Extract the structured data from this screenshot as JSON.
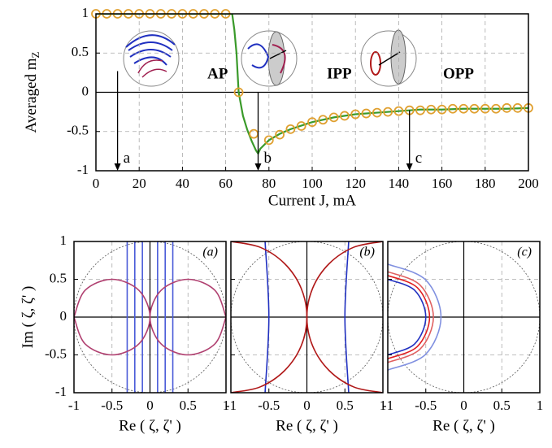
{
  "chart_data": [
    {
      "type": "line",
      "xlabel": "Current J, mA",
      "ylabel": "Averaged m",
      "ylabel_sub": "Z",
      "xlim": [
        0,
        200
      ],
      "xticks": [
        0,
        20,
        40,
        60,
        80,
        100,
        120,
        140,
        160,
        180,
        200
      ],
      "ylim": [
        -1,
        1
      ],
      "yticks": [
        -1,
        -0.5,
        0,
        0.5,
        1
      ],
      "grid": true,
      "series": [
        {
          "color": "#3a9a2a",
          "x": [
            0,
            63,
            64,
            65,
            66,
            68,
            70,
            72,
            74,
            75,
            76,
            80,
            85,
            90,
            100,
            110,
            120,
            130,
            140,
            150,
            160,
            170,
            180,
            190,
            200
          ],
          "values": [
            1,
            1,
            0.8,
            0.5,
            0,
            -0.3,
            -0.48,
            -0.62,
            -0.74,
            -0.78,
            -0.72,
            -0.61,
            -0.53,
            -0.47,
            -0.38,
            -0.32,
            -0.28,
            -0.26,
            -0.24,
            -0.22,
            -0.22,
            -0.21,
            -0.21,
            -0.21,
            -0.2
          ]
        },
        {
          "color": "#e0a030",
          "marker": "circle",
          "line": false,
          "x": [
            0,
            5,
            10,
            15,
            20,
            25,
            30,
            35,
            40,
            45,
            50,
            55,
            60,
            66,
            73,
            80,
            85,
            90,
            95,
            100,
            105,
            110,
            115,
            120,
            125,
            130,
            135,
            140,
            145,
            150,
            155,
            160,
            165,
            170,
            175,
            180,
            185,
            190,
            195,
            200
          ],
          "values": [
            1,
            1,
            1,
            1,
            1,
            1,
            1,
            1,
            1,
            1,
            1,
            1,
            1,
            0,
            -0.53,
            -0.61,
            -0.54,
            -0.47,
            -0.43,
            -0.38,
            -0.35,
            -0.32,
            -0.3,
            -0.28,
            -0.27,
            -0.26,
            -0.25,
            -0.24,
            -0.23,
            -0.23,
            -0.22,
            -0.22,
            -0.21,
            -0.21,
            -0.21,
            -0.21,
            -0.21,
            -0.2,
            -0.2,
            -0.2
          ]
        }
      ],
      "arrows": [
        {
          "text": "a",
          "x": 10,
          "from": 0.27,
          "to": -1
        },
        {
          "text": "b",
          "x": 75,
          "from": 0,
          "to": -1
        },
        {
          "text": "c",
          "x": 145,
          "from": -0.23,
          "to": -1
        }
      ],
      "insets": [
        "AP",
        "IPP",
        "OPP"
      ]
    },
    {
      "type": "line",
      "title": "(a)",
      "xlabel": "Re ( ζ, ζ' )",
      "ylabel": "Im ( ζ, ζ' )",
      "xlim": [
        -1,
        1
      ],
      "xticks": [
        -1,
        -0.5,
        0,
        0.5,
        1
      ],
      "ylim": [
        -1,
        1
      ],
      "yticks": [
        -1,
        -0.5,
        0,
        0.5,
        1
      ],
      "grid": true,
      "unit_circle": true,
      "series": [
        {
          "color": "#4a5bd8",
          "x": [
            -0.3,
            -0.3
          ],
          "values": [
            -1,
            1
          ]
        },
        {
          "color": "#4a5bd8",
          "x": [
            -0.2,
            -0.2
          ],
          "values": [
            -1,
            1
          ]
        },
        {
          "color": "#4a5bd8",
          "x": [
            -0.1,
            -0.1
          ],
          "values": [
            -1,
            1
          ]
        },
        {
          "color": "#4a5bd8",
          "x": [
            0.1,
            0.1
          ],
          "values": [
            -1,
            1
          ]
        },
        {
          "color": "#4a5bd8",
          "x": [
            0.2,
            0.2
          ],
          "values": [
            -1,
            1
          ]
        },
        {
          "color": "#4a5bd8",
          "x": [
            0.3,
            0.3
          ],
          "values": [
            -1,
            1
          ]
        },
        {
          "color": "#b04070",
          "smooth": true,
          "x": [
            1,
            0.854,
            0.5,
            0.146,
            0,
            0.146,
            0.5,
            0.854,
            1
          ],
          "values": [
            0,
            0.354,
            0.5,
            0.354,
            0,
            -0.354,
            -0.5,
            -0.354,
            0
          ]
        },
        {
          "color": "#b04070",
          "smooth": true,
          "x": [
            -1,
            -0.854,
            -0.5,
            -0.146,
            0,
            -0.146,
            -0.5,
            -0.854,
            -1
          ],
          "values": [
            0,
            0.354,
            0.5,
            0.354,
            0,
            -0.354,
            -0.5,
            -0.354,
            0
          ]
        }
      ]
    },
    {
      "type": "line",
      "title": "(b)",
      "xlabel": "Re ( ζ, ζ' )",
      "xlim": [
        -1,
        1
      ],
      "xticks": [
        -1,
        -0.5,
        0,
        0.5,
        1
      ],
      "ylim": [
        -1,
        1
      ],
      "yticks": [
        -1,
        -0.5,
        0,
        0.5,
        1
      ],
      "ytick_labels": false,
      "grid": true,
      "unit_circle": true,
      "series": [
        {
          "color": "#2030c0",
          "x": [
            -0.55,
            -0.5,
            -0.55
          ],
          "values": [
            -1,
            0,
            1
          ],
          "smooth": true
        },
        {
          "color": "#2030c0",
          "x": [
            0.55,
            0.5,
            0.55
          ],
          "values": [
            -1,
            0,
            1
          ],
          "smooth": true
        },
        {
          "color": "#b01818",
          "smooth": true,
          "x": [
            -1,
            -0.617,
            -0.293,
            -0.076,
            0,
            -0.076,
            -0.293,
            -0.617,
            -1
          ],
          "values": [
            -1,
            -0.924,
            -0.707,
            -0.383,
            0,
            0.383,
            0.707,
            0.924,
            1
          ]
        },
        {
          "color": "#b01818",
          "smooth": true,
          "x": [
            1,
            0.617,
            0.293,
            0.076,
            0,
            0.076,
            0.293,
            0.617,
            1
          ],
          "values": [
            -1,
            -0.924,
            -0.707,
            -0.383,
            0,
            0.383,
            0.707,
            0.924,
            1
          ]
        }
      ]
    },
    {
      "type": "line",
      "title": "(c)",
      "xlabel": "Re ( ζ, ζ' )",
      "xlim": [
        -1,
        1
      ],
      "xticks": [
        -1,
        -0.5,
        0,
        0.5,
        1
      ],
      "ylim": [
        -1,
        1
      ],
      "yticks": [
        -1,
        -0.5,
        0,
        0.5,
        1
      ],
      "ytick_labels": false,
      "grid": true,
      "unit_circle": true,
      "series": [
        {
          "color": "#8090e0",
          "smooth": true,
          "x": [
            -1,
            -0.505,
            -0.3,
            -0.505,
            -1
          ],
          "values": [
            -0.7,
            -0.495,
            0,
            0.495,
            0.7
          ]
        },
        {
          "color": "#e06060",
          "smooth": true,
          "x": [
            -1,
            -0.576,
            -0.4,
            -0.576,
            -1
          ],
          "values": [
            -0.6,
            -0.424,
            0,
            0.424,
            0.6
          ]
        },
        {
          "color": "#e02020",
          "smooth": true,
          "x": [
            -1,
            -0.611,
            -0.45,
            -0.611,
            -1
          ],
          "values": [
            -0.55,
            -0.389,
            0,
            0.389,
            0.55
          ]
        },
        {
          "color": "#2030c0",
          "smooth": true,
          "x": [
            -1,
            -0.646,
            -0.5,
            -0.646,
            -1
          ],
          "values": [
            -0.5,
            -0.354,
            0,
            0.354,
            0.5
          ]
        }
      ]
    }
  ]
}
